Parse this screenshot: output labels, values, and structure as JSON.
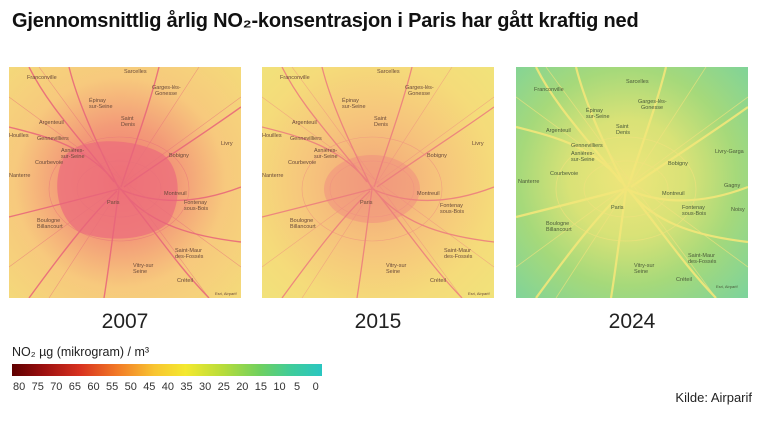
{
  "title": "Gjennomsnittlig årlig NO₂-konsentrasjon i Paris har gått kraftig ned",
  "maps": [
    {
      "year": "2007",
      "attribution": "Esri, Airparif"
    },
    {
      "year": "2015",
      "attribution": "Esri, Airparif"
    },
    {
      "year": "2024",
      "attribution": "Esri, Airparif"
    }
  ],
  "place_labels": {
    "franconville": "Franconville",
    "sarcelles": "Sarcelles",
    "garges": "Garges-lès-\nGonesse",
    "epinay": "Épinay-\nsur-Seine",
    "argenteuil": "Argenteuil",
    "saint_denis": "Saint-\nDenis",
    "gennevilliers": "Gennevilliers",
    "asnieres": "Asnières-\nsur-Seine",
    "courbevoie": "Courbevoie",
    "nanterre": "Nanterre",
    "bobigny": "Bobigny",
    "livry": "Livry-Gargan",
    "montreuil": "Montreuil",
    "paris": "Paris",
    "fontenay": "Fontenay-\nsous-Bois",
    "boulogne": "Boulogne-\nBillancourt",
    "saint_maur": "Saint-Maur-\ndes-Fossés",
    "vitry": "Vitry-sur-\nSeine",
    "creteil": "Créteil",
    "houilles": "Houilles",
    "gagny": "Gagny",
    "noisy": "Noisy-"
  },
  "legend": {
    "title": "NO₂ µg (mikrogram) / m³",
    "unit": "µg/m³",
    "ticks": [
      "80",
      "75",
      "70",
      "65",
      "60",
      "55",
      "50",
      "45",
      "40",
      "35",
      "30",
      "25",
      "20",
      "15",
      "10",
      "5",
      "0"
    ],
    "scale_colors": [
      "#5e0000",
      "#9b0f0f",
      "#d8321f",
      "#f27a26",
      "#f8c531",
      "#f4e92f",
      "#b7dc3a",
      "#6fd05f",
      "#3fcc9a",
      "#2ac6c1"
    ]
  },
  "source": "Kilde: Airparif"
}
